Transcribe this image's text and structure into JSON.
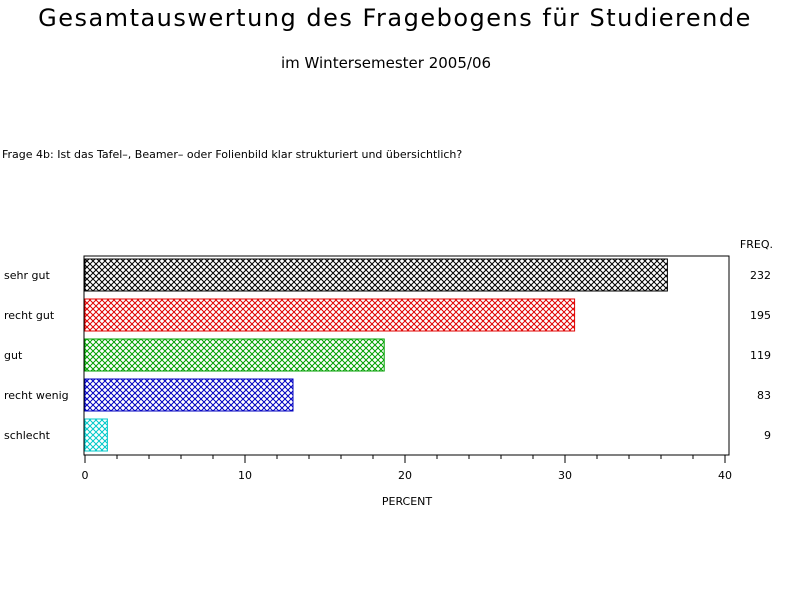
{
  "title": "Gesamtauswertung des Fragebogens für Studierende",
  "subtitle": "im Wintersemester 2005/06",
  "question": "Frage 4b: Ist das Tafel–, Beamer– oder Folienbild klar strukturiert und übersichtlich?",
  "chart_data": {
    "type": "bar",
    "orientation": "horizontal",
    "categories": [
      "sehr gut",
      "recht gut",
      "gut",
      "recht wenig",
      "schlecht"
    ],
    "values": [
      36.4,
      30.6,
      18.7,
      13.0,
      1.4
    ],
    "freq": [
      232,
      195,
      119,
      83,
      9
    ],
    "freq_label": "FREQ.",
    "xlabel": "PERCENT",
    "xlim": [
      0,
      40
    ],
    "xticks": [
      0,
      10,
      20,
      30,
      40
    ],
    "colors": [
      "#000000",
      "#e00000",
      "#00a000",
      "#0000c0",
      "#00c8c8"
    ],
    "pattern": "crosshatch",
    "grid": false
  }
}
